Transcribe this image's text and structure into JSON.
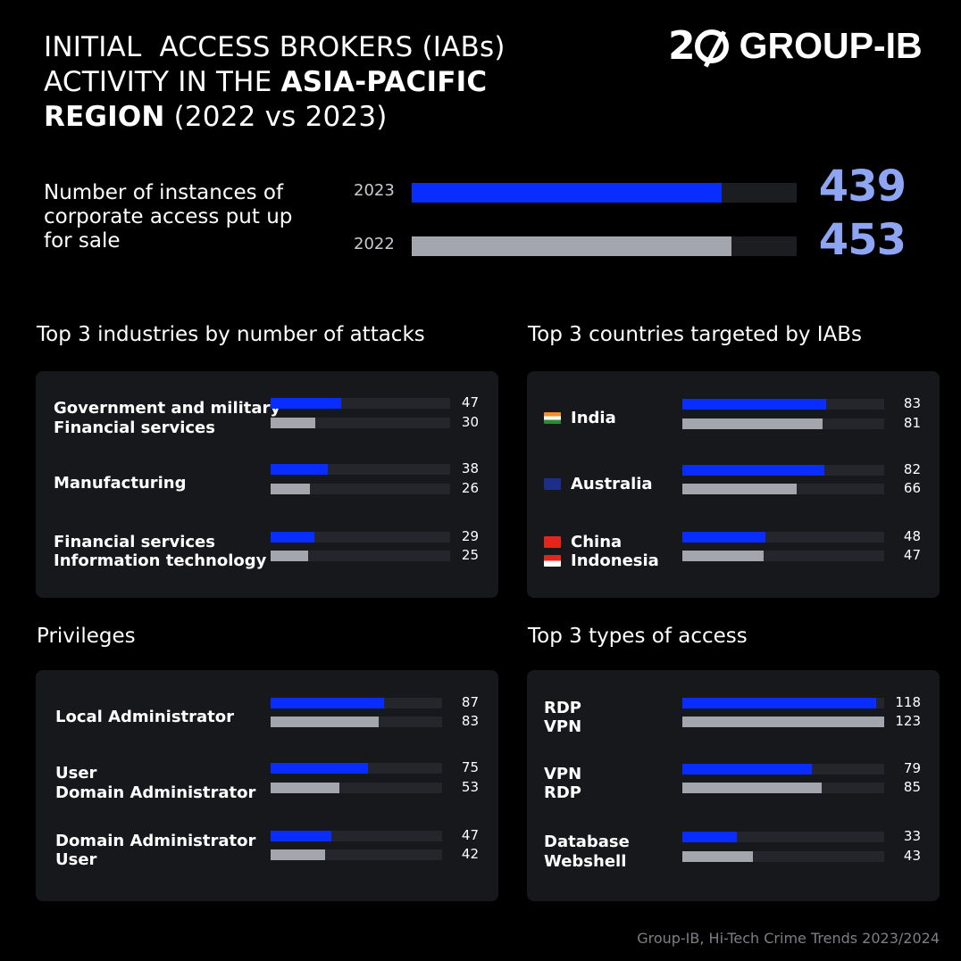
{
  "colors": {
    "y2023": "#0a2dff",
    "y2022": "#a4a6ad",
    "accent": "#8ea5f4"
  },
  "header": {
    "title_line1": "INITIAL  ACCESS BROKERS (IABs)",
    "title_line2_a": "ACTIVITY IN THE ",
    "title_line2_b": "ASIA-PACIFIC",
    "title_line3_a": "REGION",
    "title_line3_b": " (2022 vs 2023)",
    "logo_num": "2",
    "logo_name": "GROUP-IB"
  },
  "total": {
    "label": "Number of instances of corporate access put up for sale",
    "rows": [
      {
        "year": "2023",
        "value": 439
      },
      {
        "year": "2022",
        "value": 453
      }
    ]
  },
  "chart_data": [
    {
      "type": "bar",
      "title": "Top 3 industries  by number  of attacks",
      "groups": [
        {
          "rows": [
            {
              "label": "Government and military",
              "year": "2023",
              "value": 47
            },
            {
              "label": "Financial services",
              "year": "2022",
              "value": 30
            }
          ]
        },
        {
          "label": "Manufacturing",
          "rows": [
            {
              "label": "",
              "year": "2023",
              "value": 38
            },
            {
              "label": "",
              "year": "2022",
              "value": 26
            }
          ]
        },
        {
          "rows": [
            {
              "label": "Financial services",
              "year": "2023",
              "value": 29
            },
            {
              "label": "Information technology",
              "year": "2022",
              "value": 25
            }
          ]
        }
      ]
    },
    {
      "type": "bar",
      "title": "Top 3 countries  targeted by IABs",
      "groups": [
        {
          "label": "India",
          "flag": "india",
          "rows": [
            {
              "label": "",
              "year": "2023",
              "value": 83
            },
            {
              "label": "",
              "year": "2022",
              "value": 81
            }
          ]
        },
        {
          "label": "Australia",
          "flag": "australia",
          "rows": [
            {
              "label": "",
              "year": "2023",
              "value": 82
            },
            {
              "label": "",
              "year": "2022",
              "value": 66
            }
          ]
        },
        {
          "rows": [
            {
              "label": "China",
              "flag": "china",
              "year": "2023",
              "value": 48
            },
            {
              "label": "Indonesia",
              "flag": "indonesia",
              "year": "2022",
              "value": 47
            }
          ]
        }
      ]
    },
    {
      "type": "bar",
      "title": "Privileges",
      "groups": [
        {
          "label": "Local Administrator",
          "rows": [
            {
              "label": "",
              "year": "2023",
              "value": 87
            },
            {
              "label": "",
              "year": "2022",
              "value": 83
            }
          ]
        },
        {
          "rows": [
            {
              "label": "User",
              "year": "2023",
              "value": 75
            },
            {
              "label": "Domain Administrator",
              "year": "2022",
              "value": 53
            }
          ]
        },
        {
          "rows": [
            {
              "label": "Domain Administrator",
              "year": "2023",
              "value": 47
            },
            {
              "label": "User",
              "year": "2022",
              "value": 42
            }
          ]
        }
      ]
    },
    {
      "type": "bar",
      "title": "Top 3 types of access",
      "groups": [
        {
          "rows": [
            {
              "label": "RDP",
              "year": "2023",
              "value": 118
            },
            {
              "label": "VPN",
              "year": "2022",
              "value": 123
            }
          ]
        },
        {
          "rows": [
            {
              "label": "VPN",
              "year": "2023",
              "value": 79
            },
            {
              "label": "RDP",
              "year": "2022",
              "value": 85
            }
          ]
        },
        {
          "rows": [
            {
              "label": "Database",
              "year": "2023",
              "value": 33
            },
            {
              "label": "Webshell",
              "year": "2022",
              "value": 43
            }
          ]
        }
      ]
    }
  ],
  "footer": "Group-IB, Hi-Tech Crime Trends 2023/2024"
}
